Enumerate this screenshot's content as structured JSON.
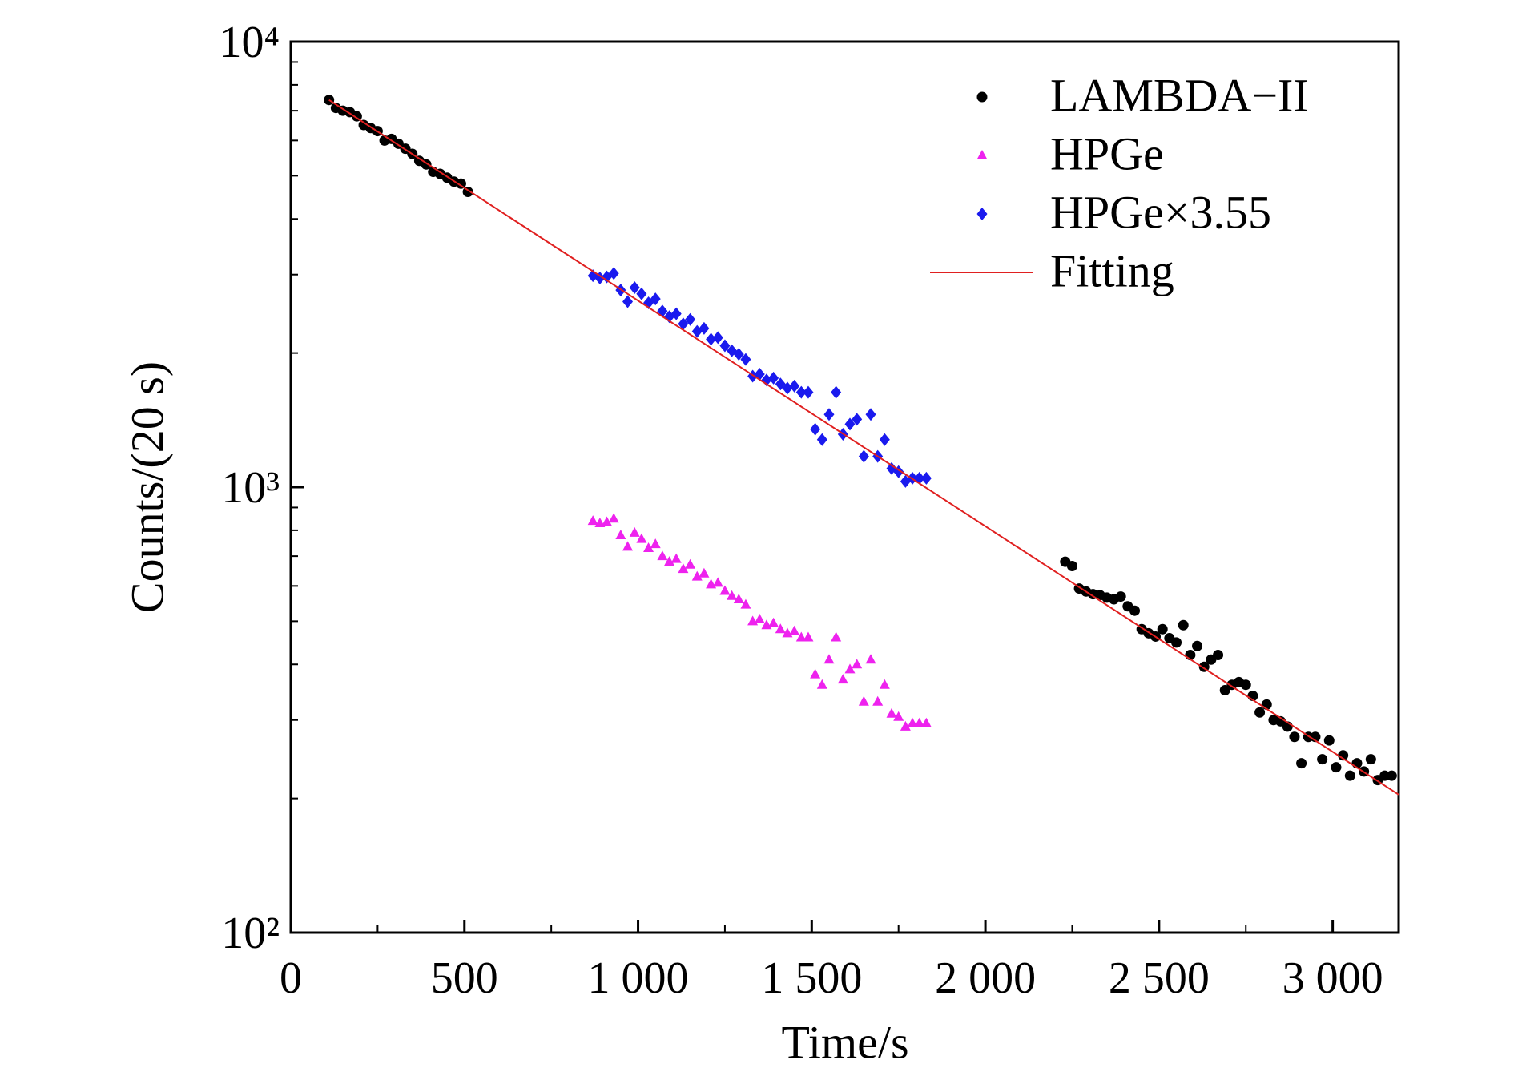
{
  "chart_data": {
    "type": "scatter",
    "xlabel": "Time/s",
    "ylabel": "Counts/(20 s)",
    "xlim": [
      0,
      3190
    ],
    "ylim": [
      100,
      10000
    ],
    "ylog": true,
    "xticks": [
      0,
      500,
      {
        "value": 1000,
        "label": "1 000"
      },
      {
        "value": 1500,
        "label": "1 500"
      },
      {
        "value": 2000,
        "label": "2 000"
      },
      {
        "value": 2500,
        "label": "2 500"
      },
      {
        "value": 3000,
        "label": "3 000"
      }
    ],
    "yticks": [
      {
        "value": 100,
        "label": "10²"
      },
      {
        "value": 1000,
        "label": "10³"
      },
      {
        "value": 10000,
        "label": "10⁴"
      }
    ],
    "legend": "upper right",
    "series": [
      {
        "name": "LAMBDA−II",
        "color": "#000000",
        "marker": "circle",
        "x": [
          110,
          130,
          150,
          170,
          190,
          210,
          230,
          250,
          270,
          290,
          310,
          330,
          350,
          370,
          390,
          410,
          430,
          450,
          470,
          490,
          510,
          2230,
          2250,
          2270,
          2290,
          2310,
          2330,
          2350,
          2370,
          2390,
          2410,
          2430,
          2450,
          2470,
          2490,
          2510,
          2530,
          2550,
          2570,
          2590,
          2610,
          2630,
          2650,
          2670,
          2690,
          2710,
          2730,
          2750,
          2770,
          2790,
          2810,
          2830,
          2850,
          2870,
          2890,
          2910,
          2930,
          2950,
          2970,
          2990,
          3010,
          3030,
          3050,
          3070,
          3090,
          3110,
          3130,
          3150,
          3170
        ],
        "values": [
          7400,
          7100,
          7000,
          6950,
          6800,
          6500,
          6400,
          6300,
          6000,
          6050,
          5900,
          5750,
          5600,
          5400,
          5300,
          5100,
          5050,
          4950,
          4850,
          4800,
          4600,
          680,
          665,
          592,
          583,
          575,
          572,
          565,
          560,
          568,
          540,
          528,
          480,
          470,
          462,
          480,
          458,
          448,
          490,
          420,
          440,
          395,
          410,
          420,
          350,
          360,
          365,
          360,
          340,
          312,
          325,
          300,
          298,
          290,
          275,
          240,
          275,
          275,
          245,
          270,
          235,
          250,
          225,
          240,
          230,
          245,
          220,
          225,
          225
        ]
      },
      {
        "name": "HPGe",
        "color": "#ee22ee",
        "marker": "triangle",
        "x": [
          870,
          890,
          910,
          930,
          950,
          970,
          990,
          1010,
          1030,
          1050,
          1070,
          1090,
          1110,
          1130,
          1150,
          1170,
          1190,
          1210,
          1230,
          1250,
          1270,
          1290,
          1310,
          1330,
          1350,
          1370,
          1390,
          1410,
          1430,
          1450,
          1470,
          1490,
          1510,
          1530,
          1550,
          1570,
          1590,
          1610,
          1630,
          1650,
          1670,
          1690,
          1710,
          1730,
          1750,
          1770,
          1790,
          1810,
          1830
        ],
        "values": [
          840,
          830,
          835,
          850,
          780,
          735,
          790,
          765,
          730,
          745,
          700,
          680,
          690,
          655,
          670,
          630,
          640,
          605,
          610,
          585,
          570,
          560,
          545,
          500,
          505,
          490,
          495,
          480,
          470,
          475,
          460,
          460,
          380,
          360,
          410,
          460,
          370,
          390,
          400,
          330,
          410,
          330,
          360,
          310,
          305,
          290,
          295,
          295,
          295
        ]
      },
      {
        "name": "HPGe×3.55",
        "color": "#1a1aee",
        "marker": "diamond",
        "x": [
          870,
          890,
          910,
          930,
          950,
          970,
          990,
          1010,
          1030,
          1050,
          1070,
          1090,
          1110,
          1130,
          1150,
          1170,
          1190,
          1210,
          1230,
          1250,
          1270,
          1290,
          1310,
          1330,
          1350,
          1370,
          1390,
          1410,
          1430,
          1450,
          1470,
          1490,
          1510,
          1530,
          1550,
          1570,
          1590,
          1610,
          1630,
          1650,
          1670,
          1690,
          1710,
          1730,
          1750,
          1770,
          1790,
          1810,
          1830
        ],
        "values": [
          2982,
          2947,
          2964,
          3018,
          2769,
          2609,
          2805,
          2716,
          2592,
          2645,
          2485,
          2414,
          2450,
          2325,
          2379,
          2237,
          2272,
          2148,
          2166,
          2077,
          2024,
          1988,
          1935,
          1775,
          1793,
          1740,
          1757,
          1704,
          1669,
          1686,
          1633,
          1633,
          1349,
          1278,
          1456,
          1633,
          1314,
          1385,
          1420,
          1172,
          1456,
          1172,
          1278,
          1101,
          1083,
          1030,
          1047,
          1047,
          1047
        ]
      },
      {
        "name": "Fitting",
        "color": "#e02020",
        "marker": "line",
        "x": [
          110,
          3190
        ],
        "values": [
          7400,
          204
        ]
      }
    ]
  }
}
